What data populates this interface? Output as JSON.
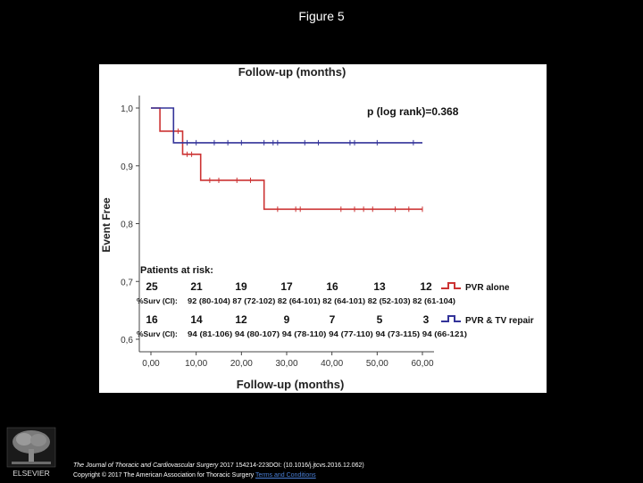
{
  "slide": {
    "title": "Figure 5"
  },
  "citation": {
    "journal": "The Journal of Thoracic and Cardiovascular Surgery",
    "details": " 2017 154214-223DOI: (10.1016/j.jtcvs.2016.12.062)",
    "copyright": "Copyright © 2017 The American Association for Thoracic Surgery ",
    "terms_link": "Terms and Conditions"
  },
  "publisher_logo": {
    "text": "ELSEVIER",
    "icon": "tree-logo-icon"
  },
  "chart_data": {
    "type": "line",
    "title": "Follow-up (months)",
    "xlabel": "Follow-up (months)",
    "ylabel": "Event Free",
    "xlim": [
      0,
      63
    ],
    "ylim": [
      0.6,
      1.0
    ],
    "x_ticks": [
      "0,00",
      "10,00",
      "20,00",
      "30,00",
      "40,00",
      "50,00",
      "60,00"
    ],
    "y_ticks": [
      "0,6",
      "0,7",
      "0,8",
      "0,9",
      "1,0"
    ],
    "annotation": "p (log rank)=0.368",
    "grid": false,
    "legend_position": "right",
    "series": [
      {
        "name": "PVR alone",
        "color": "#cc3333",
        "steps": [
          [
            0,
            1.0
          ],
          [
            2,
            1.0
          ],
          [
            2,
            0.96
          ],
          [
            7,
            0.96
          ],
          [
            7,
            0.92
          ],
          [
            11,
            0.92
          ],
          [
            11,
            0.875
          ],
          [
            25,
            0.875
          ],
          [
            25,
            0.825
          ],
          [
            60,
            0.825
          ]
        ],
        "censored": [
          [
            6,
            0.96
          ],
          [
            8,
            0.92
          ],
          [
            9,
            0.92
          ],
          [
            13,
            0.875
          ],
          [
            15,
            0.875
          ],
          [
            19,
            0.875
          ],
          [
            22,
            0.875
          ],
          [
            28,
            0.825
          ],
          [
            32,
            0.825
          ],
          [
            33,
            0.825
          ],
          [
            42,
            0.825
          ],
          [
            45,
            0.825
          ],
          [
            47,
            0.825
          ],
          [
            49,
            0.825
          ],
          [
            54,
            0.825
          ],
          [
            57,
            0.825
          ],
          [
            60,
            0.825
          ]
        ]
      },
      {
        "name": "PVR & TV repair",
        "color": "#333399",
        "steps": [
          [
            0,
            1.0
          ],
          [
            5,
            1.0
          ],
          [
            5,
            0.94
          ],
          [
            60,
            0.94
          ]
        ],
        "censored": [
          [
            8,
            0.94
          ],
          [
            10,
            0.94
          ],
          [
            14,
            0.94
          ],
          [
            17,
            0.94
          ],
          [
            20,
            0.94
          ],
          [
            25,
            0.94
          ],
          [
            27,
            0.94
          ],
          [
            28,
            0.94
          ],
          [
            34,
            0.94
          ],
          [
            37,
            0.94
          ],
          [
            44,
            0.94
          ],
          [
            45,
            0.94
          ],
          [
            50,
            0.94
          ],
          [
            58,
            0.94
          ]
        ]
      }
    ],
    "risk_table": {
      "heading": "Patients at risk:",
      "surv_label": "%Surv (CI):",
      "groups": [
        {
          "name": "PVR alone",
          "counts": [
            "25",
            "21",
            "19",
            "17",
            "16",
            "13",
            "12"
          ],
          "surv": "92 (80-104) 87 (72-102) 82 (64-101) 82 (64-101) 82 (52-103) 82 (61-104)"
        },
        {
          "name": "PVR & TV repair",
          "counts": [
            "16",
            "14",
            "12",
            "9",
            "7",
            "5",
            "3"
          ],
          "surv": "94 (81-106) 94 (80-107) 94 (78-110) 94 (77-110) 94 (73-115) 94 (66-121)"
        }
      ]
    }
  }
}
